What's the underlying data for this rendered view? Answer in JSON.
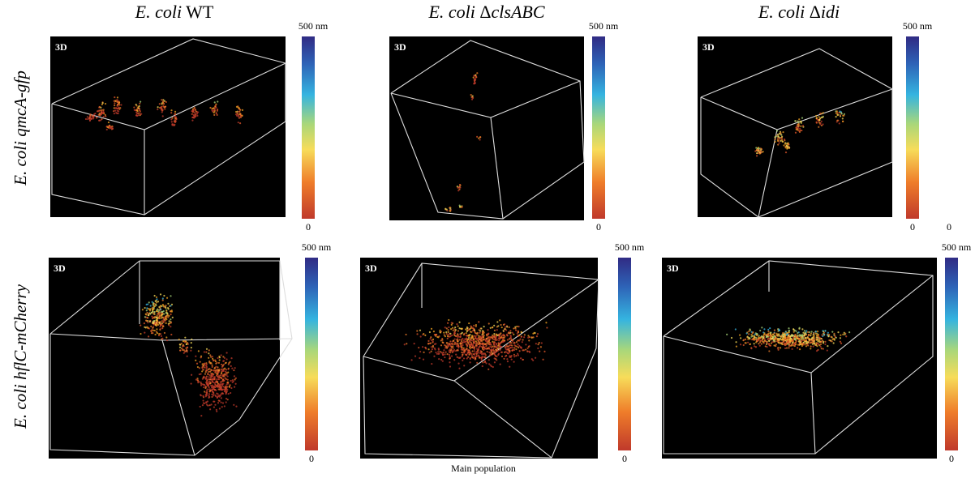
{
  "columns": [
    [
      "E. coli",
      "WT"
    ],
    [
      "E. coli",
      "Δ",
      "clsABC"
    ],
    [
      "E. coli",
      "Δ",
      "idi"
    ]
  ],
  "rows": [
    "E. coli qmcA-gfp",
    "E. coli hflC-mCherry"
  ],
  "panels": [
    {
      "badge": "3D",
      "scale_max": "500 nm",
      "scale_min": "0"
    },
    {
      "badge": "3D",
      "scale_max": "500 nm",
      "scale_min": "0"
    },
    {
      "badge": "3D",
      "scale_max": "500 nm",
      "scale_min": "0"
    },
    {
      "badge": "3D",
      "scale_max": "500 nm",
      "scale_min": "0"
    },
    {
      "badge": "3D",
      "scale_max": "500 nm",
      "scale_min": "0"
    },
    {
      "badge": "3D",
      "scale_max": "500 nm",
      "scale_min": "0"
    }
  ],
  "caption": "Main population",
  "extra_label": "0"
}
